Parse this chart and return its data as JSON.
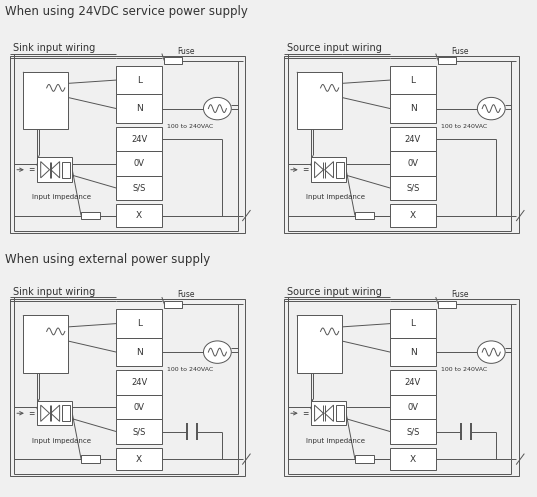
{
  "title_24v": "When using 24VDC service power supply",
  "title_ext": "When using external power supply",
  "sink_label": "Sink input wiring",
  "source_label": "Source input wiring",
  "fuse_label": "Fuse",
  "vac_label": "100 to 240VAC",
  "impedance_label": "Input impedance",
  "bg_color": "#f0f0f0",
  "box_color": "#ffffff",
  "line_color": "#555555",
  "text_color": "#333333",
  "font_size": 6.0,
  "title_font_size": 8.5,
  "sub_font_size": 7.0,
  "lw": 0.7
}
